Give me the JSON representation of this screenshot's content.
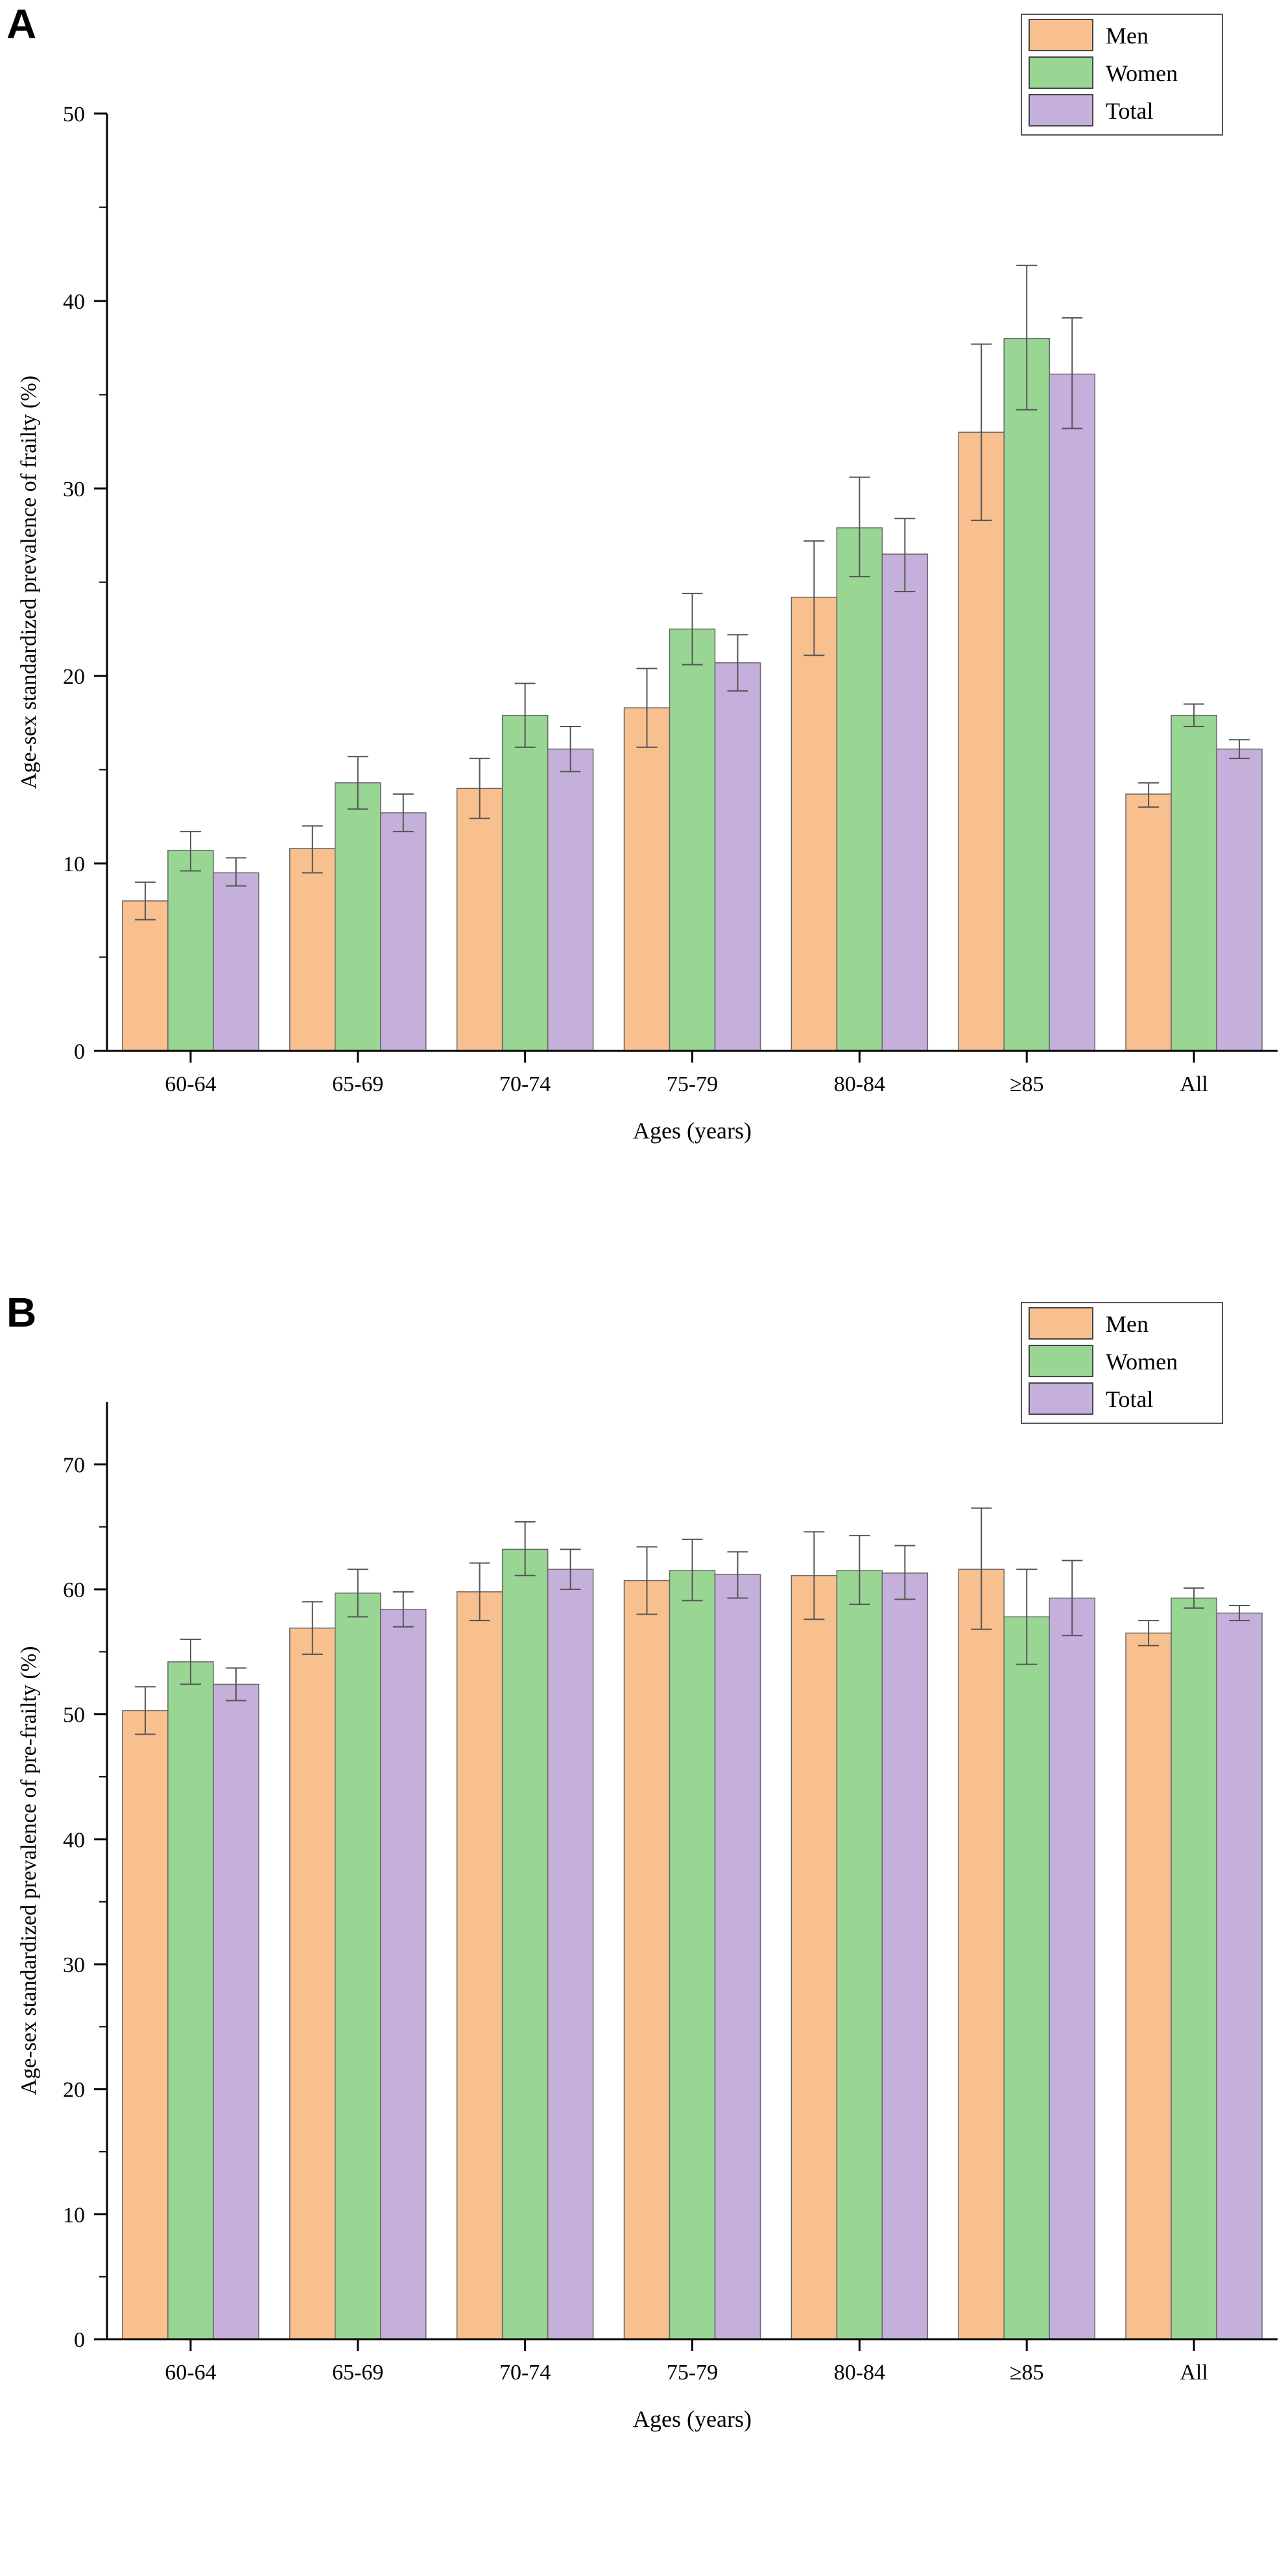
{
  "chart_data": [
    {
      "panel_label": "A",
      "type": "bar",
      "title": "",
      "xlabel": "Ages (years)",
      "ylabel": "Age-sex standardized prevalence of frailty (%)",
      "ylim": [
        0,
        50
      ],
      "yticks": [
        0,
        10,
        20,
        30,
        40,
        50
      ],
      "categories": [
        "60-64",
        "65-69",
        "70-74",
        "75-79",
        "80-84",
        "≥85",
        "All"
      ],
      "legend_position": "top-right",
      "series": [
        {
          "name": "Men",
          "color": "#F9C08F",
          "values": [
            8.0,
            10.8,
            14.0,
            18.3,
            24.2,
            33.0,
            13.7
          ],
          "err_low": [
            7.0,
            9.5,
            12.4,
            16.2,
            21.1,
            28.3,
            13.0
          ],
          "err_high": [
            9.0,
            12.0,
            15.6,
            20.4,
            27.2,
            37.7,
            14.3
          ]
        },
        {
          "name": "Women",
          "color": "#99D593",
          "values": [
            10.7,
            14.3,
            17.9,
            22.5,
            27.9,
            38.0,
            17.9
          ],
          "err_low": [
            9.6,
            12.9,
            16.2,
            20.6,
            25.3,
            34.2,
            17.3
          ],
          "err_high": [
            11.7,
            15.7,
            19.6,
            24.4,
            30.6,
            41.9,
            18.5
          ]
        },
        {
          "name": "Total",
          "color": "#C4B0DA",
          "values": [
            9.5,
            12.7,
            16.1,
            20.7,
            26.5,
            36.1,
            16.1
          ],
          "err_low": [
            8.8,
            11.7,
            14.9,
            19.2,
            24.5,
            33.2,
            15.6
          ],
          "err_high": [
            10.3,
            13.7,
            17.3,
            22.2,
            28.4,
            39.1,
            16.6
          ]
        }
      ]
    },
    {
      "panel_label": "B",
      "type": "bar",
      "title": "",
      "xlabel": "Ages (years)",
      "ylabel": "Age-sex standardized prevalence of pre-frailty (%)",
      "ylim": [
        0,
        75
      ],
      "yticks": [
        0,
        10,
        20,
        30,
        40,
        50,
        60,
        70
      ],
      "categories": [
        "60-64",
        "65-69",
        "70-74",
        "75-79",
        "80-84",
        "≥85",
        "All"
      ],
      "legend_position": "top-right",
      "series": [
        {
          "name": "Men",
          "color": "#F9C08F",
          "values": [
            50.3,
            56.9,
            59.8,
            60.7,
            61.1,
            61.6,
            56.5
          ],
          "err_low": [
            48.4,
            54.8,
            57.5,
            58.0,
            57.6,
            56.8,
            55.5
          ],
          "err_high": [
            52.2,
            59.0,
            62.1,
            63.4,
            64.6,
            66.5,
            57.5
          ]
        },
        {
          "name": "Women",
          "color": "#99D593",
          "values": [
            54.2,
            59.7,
            63.2,
            61.5,
            61.5,
            57.8,
            59.3
          ],
          "err_low": [
            52.4,
            57.8,
            61.1,
            59.1,
            58.8,
            54.0,
            58.5
          ],
          "err_high": [
            56.0,
            61.6,
            65.4,
            64.0,
            64.3,
            61.6,
            60.1
          ]
        },
        {
          "name": "Total",
          "color": "#C4B0DA",
          "values": [
            52.4,
            58.4,
            61.6,
            61.2,
            61.3,
            59.3,
            58.1
          ],
          "err_low": [
            51.1,
            57.0,
            60.0,
            59.3,
            59.2,
            56.3,
            57.5
          ],
          "err_high": [
            53.7,
            59.8,
            63.2,
            63.0,
            63.5,
            62.3,
            58.7
          ]
        }
      ]
    }
  ]
}
